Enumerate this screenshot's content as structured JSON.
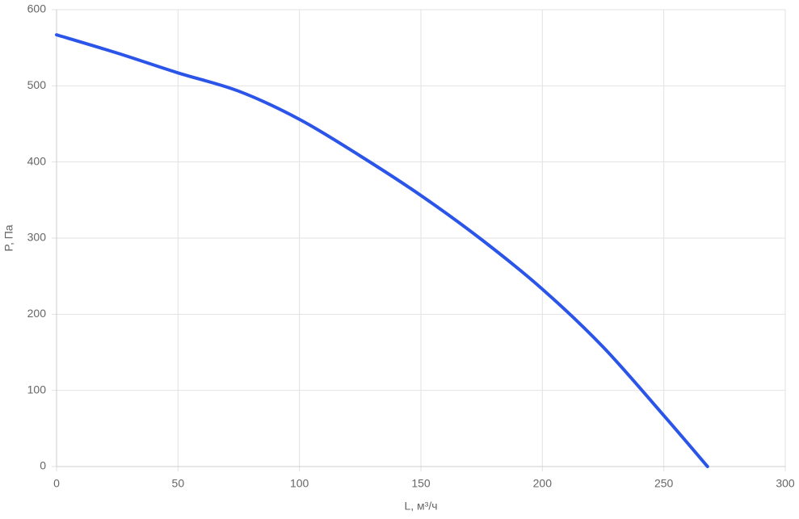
{
  "chart_data": {
    "type": "line",
    "x_label": "L, м³/ч",
    "y_label": "P, Па",
    "x": [
      0,
      25,
      50,
      75,
      100,
      125,
      150,
      175,
      200,
      225,
      250,
      268
    ],
    "series": [
      {
        "color": "#2b55e8",
        "values": [
          567,
          543,
          517,
          493,
          456,
          408,
          356,
          298,
          233,
          157,
          67,
          0
        ]
      }
    ],
    "xlim": [
      0,
      300
    ],
    "xticks": [
      0,
      50,
      100,
      150,
      200,
      250,
      300
    ],
    "ylim": [
      0,
      600
    ],
    "yticks": [
      0,
      100,
      200,
      300,
      400,
      500,
      600
    ],
    "grid": true
  }
}
